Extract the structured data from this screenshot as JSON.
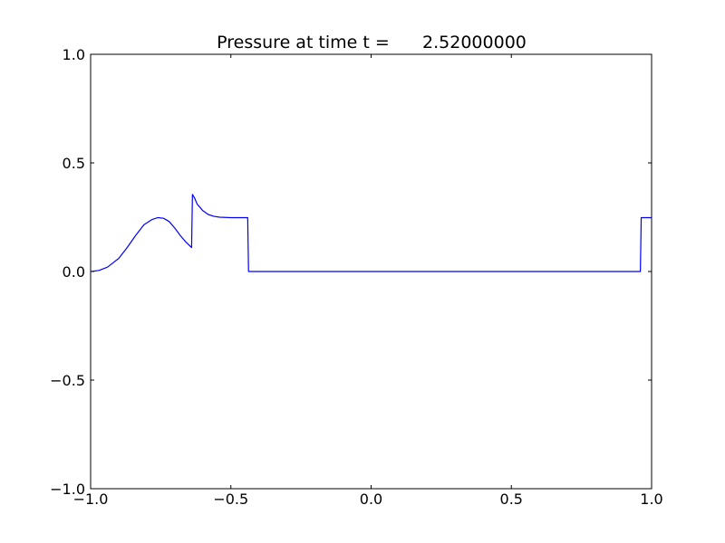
{
  "chart_data": {
    "type": "line",
    "title": "Pressure at time t =      2.52000000",
    "xlabel": "",
    "ylabel": "",
    "xlim": [
      -1.0,
      1.0
    ],
    "ylim": [
      -1.0,
      1.0
    ],
    "x_ticks": [
      -1.0,
      -0.5,
      0.0,
      0.5,
      1.0
    ],
    "x_tick_labels": [
      "−1.0",
      "−0.5",
      "0.0",
      "0.5",
      "1.0"
    ],
    "y_ticks": [
      -1.0,
      -0.5,
      0.0,
      0.5,
      1.0
    ],
    "y_tick_labels": [
      "−1.0",
      "−0.5",
      "0.0",
      "0.5",
      "1.0"
    ],
    "grid": false,
    "legend": "none",
    "series": [
      {
        "color": "#0000ff",
        "x": [
          -1.0,
          -0.97,
          -0.94,
          -0.9,
          -0.87,
          -0.84,
          -0.81,
          -0.78,
          -0.76,
          -0.74,
          -0.72,
          -0.7,
          -0.68,
          -0.66,
          -0.64,
          -0.637,
          -0.63,
          -0.62,
          -0.6,
          -0.58,
          -0.56,
          -0.54,
          -0.52,
          -0.5,
          -0.48,
          -0.44,
          -0.437,
          -0.43,
          -0.2,
          0.2,
          0.6,
          0.96,
          0.963,
          0.98,
          1.0
        ],
        "y": [
          0.0,
          0.005,
          0.02,
          0.06,
          0.11,
          0.165,
          0.215,
          0.24,
          0.248,
          0.245,
          0.23,
          0.2,
          0.165,
          0.135,
          0.11,
          0.355,
          0.34,
          0.31,
          0.28,
          0.262,
          0.254,
          0.25,
          0.249,
          0.248,
          0.248,
          0.248,
          0.0,
          0.0,
          0.0,
          0.0,
          0.0,
          0.0,
          0.248,
          0.248,
          0.248
        ]
      }
    ]
  }
}
